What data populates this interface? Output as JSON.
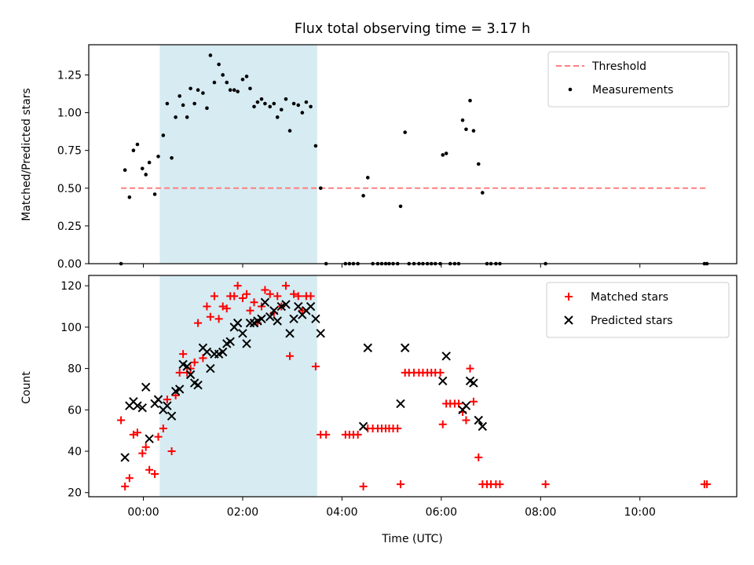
{
  "title": "Flux total observing time = 3.17 h",
  "chart_data": [
    {
      "type": "scatter",
      "ylabel": "Matched/Predicted stars",
      "xlabel": "",
      "xlim": [
        -1.1,
        11.95
      ],
      "ylim": [
        0,
        1.45
      ],
      "yticks": [
        0.0,
        0.25,
        0.5,
        0.75,
        1.0,
        1.25
      ],
      "ytick_labels": [
        "0.00",
        "0.25",
        "0.50",
        "0.75",
        "1.00",
        "1.25"
      ],
      "highlight_span": [
        0.33,
        3.5
      ],
      "threshold": {
        "name": "Threshold",
        "y": 0.5,
        "x": [
          -0.45,
          11.35
        ],
        "color": "#ff7f7f"
      },
      "legend_position": "top-right",
      "series": [
        {
          "name": "Measurements",
          "color": "#000000",
          "points": [
            [
              -0.45,
              0.0
            ],
            [
              -0.37,
              0.62
            ],
            [
              -0.28,
              0.44
            ],
            [
              -0.2,
              0.75
            ],
            [
              -0.12,
              0.79
            ],
            [
              -0.02,
              0.63
            ],
            [
              0.05,
              0.59
            ],
            [
              0.12,
              0.67
            ],
            [
              0.23,
              0.46
            ],
            [
              0.3,
              0.71
            ],
            [
              0.4,
              0.85
            ],
            [
              0.48,
              1.06
            ],
            [
              0.57,
              0.7
            ],
            [
              0.65,
              0.97
            ],
            [
              0.73,
              1.11
            ],
            [
              0.8,
              1.05
            ],
            [
              0.88,
              0.97
            ],
            [
              0.95,
              1.16
            ],
            [
              1.03,
              1.06
            ],
            [
              1.1,
              1.15
            ],
            [
              1.2,
              1.13
            ],
            [
              1.28,
              1.03
            ],
            [
              1.35,
              1.38
            ],
            [
              1.43,
              1.2
            ],
            [
              1.52,
              1.32
            ],
            [
              1.6,
              1.25
            ],
            [
              1.68,
              1.2
            ],
            [
              1.75,
              1.15
            ],
            [
              1.83,
              1.15
            ],
            [
              1.9,
              1.14
            ],
            [
              2.0,
              1.22
            ],
            [
              2.08,
              1.24
            ],
            [
              2.15,
              1.16
            ],
            [
              2.23,
              1.04
            ],
            [
              2.3,
              1.07
            ],
            [
              2.38,
              1.09
            ],
            [
              2.45,
              1.06
            ],
            [
              2.55,
              1.04
            ],
            [
              2.63,
              1.06
            ],
            [
              2.7,
              0.97
            ],
            [
              2.78,
              1.02
            ],
            [
              2.87,
              1.09
            ],
            [
              2.95,
              0.88
            ],
            [
              3.03,
              1.06
            ],
            [
              3.12,
              1.05
            ],
            [
              3.2,
              1.0
            ],
            [
              3.28,
              1.07
            ],
            [
              3.37,
              1.04
            ],
            [
              3.47,
              0.78
            ],
            [
              3.57,
              0.5
            ],
            [
              3.68,
              0.0
            ],
            [
              4.07,
              0.0
            ],
            [
              4.15,
              0.0
            ],
            [
              4.23,
              0.0
            ],
            [
              4.32,
              0.0
            ],
            [
              4.43,
              0.45
            ],
            [
              4.52,
              0.57
            ],
            [
              4.62,
              0.0
            ],
            [
              4.72,
              0.0
            ],
            [
              4.8,
              0.0
            ],
            [
              4.88,
              0.0
            ],
            [
              4.95,
              0.0
            ],
            [
              5.03,
              0.0
            ],
            [
              5.12,
              0.0
            ],
            [
              5.18,
              0.38
            ],
            [
              5.27,
              0.87
            ],
            [
              5.35,
              0.0
            ],
            [
              5.45,
              0.0
            ],
            [
              5.55,
              0.0
            ],
            [
              5.63,
              0.0
            ],
            [
              5.72,
              0.0
            ],
            [
              5.8,
              0.0
            ],
            [
              5.88,
              0.0
            ],
            [
              5.98,
              0.0
            ],
            [
              6.03,
              0.72
            ],
            [
              6.1,
              0.73
            ],
            [
              6.18,
              0.0
            ],
            [
              6.27,
              0.0
            ],
            [
              6.35,
              0.0
            ],
            [
              6.43,
              0.95
            ],
            [
              6.5,
              0.89
            ],
            [
              6.58,
              1.08
            ],
            [
              6.65,
              0.88
            ],
            [
              6.75,
              0.66
            ],
            [
              6.83,
              0.47
            ],
            [
              6.92,
              0.0
            ],
            [
              7.0,
              0.0
            ],
            [
              7.1,
              0.0
            ],
            [
              7.18,
              0.0
            ],
            [
              8.1,
              0.0
            ],
            [
              11.3,
              0.0
            ],
            [
              11.35,
              0.0
            ]
          ]
        }
      ]
    },
    {
      "type": "scatter",
      "ylabel": "Count",
      "xlabel": "Time (UTC)",
      "xlim": [
        -1.1,
        11.95
      ],
      "ylim": [
        18,
        125
      ],
      "yticks": [
        20,
        40,
        60,
        80,
        100,
        120
      ],
      "ytick_labels": [
        "20",
        "40",
        "60",
        "80",
        "100",
        "120"
      ],
      "xticks": [
        0,
        2,
        4,
        6,
        8,
        10
      ],
      "xtick_labels": [
        "00:00",
        "02:00",
        "04:00",
        "06:00",
        "08:00",
        "10:00"
      ],
      "highlight_span": [
        0.33,
        3.5
      ],
      "legend_position": "top-right",
      "series": [
        {
          "name": "Matched stars",
          "marker": "plus",
          "color": "#ff0000",
          "points": [
            [
              -0.45,
              55
            ],
            [
              -0.37,
              23
            ],
            [
              -0.28,
              27
            ],
            [
              -0.2,
              48
            ],
            [
              -0.12,
              49
            ],
            [
              -0.02,
              39
            ],
            [
              0.05,
              42
            ],
            [
              0.12,
              31
            ],
            [
              0.23,
              29
            ],
            [
              0.3,
              47
            ],
            [
              0.4,
              51
            ],
            [
              0.48,
              65
            ],
            [
              0.57,
              40
            ],
            [
              0.65,
              67
            ],
            [
              0.73,
              78
            ],
            [
              0.8,
              87
            ],
            [
              0.88,
              78
            ],
            [
              0.95,
              80
            ],
            [
              1.03,
              83
            ],
            [
              1.1,
              102
            ],
            [
              1.2,
              85
            ],
            [
              1.28,
              110
            ],
            [
              1.35,
              105
            ],
            [
              1.43,
              115
            ],
            [
              1.52,
              104
            ],
            [
              1.6,
              110
            ],
            [
              1.68,
              109
            ],
            [
              1.75,
              115
            ],
            [
              1.83,
              115
            ],
            [
              1.9,
              120
            ],
            [
              2.0,
              114
            ],
            [
              2.08,
              116
            ],
            [
              2.15,
              108
            ],
            [
              2.23,
              112
            ],
            [
              2.3,
              102
            ],
            [
              2.38,
              110
            ],
            [
              2.45,
              118
            ],
            [
              2.55,
              116
            ],
            [
              2.63,
              107
            ],
            [
              2.7,
              115
            ],
            [
              2.78,
              110
            ],
            [
              2.87,
              120
            ],
            [
              2.95,
              86
            ],
            [
              3.03,
              116
            ],
            [
              3.12,
              115
            ],
            [
              3.2,
              108
            ],
            [
              3.28,
              115
            ],
            [
              3.37,
              115
            ],
            [
              3.47,
              81
            ],
            [
              3.57,
              48
            ],
            [
              3.68,
              48
            ],
            [
              4.07,
              48
            ],
            [
              4.15,
              48
            ],
            [
              4.23,
              48
            ],
            [
              4.32,
              48
            ],
            [
              4.43,
              23
            ],
            [
              4.52,
              51
            ],
            [
              4.62,
              51
            ],
            [
              4.72,
              51
            ],
            [
              4.8,
              51
            ],
            [
              4.88,
              51
            ],
            [
              4.95,
              51
            ],
            [
              5.03,
              51
            ],
            [
              5.12,
              51
            ],
            [
              5.18,
              24
            ],
            [
              5.27,
              78
            ],
            [
              5.35,
              78
            ],
            [
              5.45,
              78
            ],
            [
              5.55,
              78
            ],
            [
              5.63,
              78
            ],
            [
              5.72,
              78
            ],
            [
              5.8,
              78
            ],
            [
              5.88,
              78
            ],
            [
              5.98,
              78
            ],
            [
              6.03,
              53
            ],
            [
              6.1,
              63
            ],
            [
              6.18,
              63
            ],
            [
              6.27,
              63
            ],
            [
              6.35,
              63
            ],
            [
              6.43,
              59
            ],
            [
              6.5,
              55
            ],
            [
              6.58,
              80
            ],
            [
              6.65,
              64
            ],
            [
              6.75,
              37
            ],
            [
              6.83,
              24
            ],
            [
              6.92,
              24
            ],
            [
              7.0,
              24
            ],
            [
              7.1,
              24
            ],
            [
              7.18,
              24
            ],
            [
              8.1,
              24
            ],
            [
              11.3,
              24
            ],
            [
              11.35,
              24
            ]
          ]
        },
        {
          "name": "Predicted stars",
          "marker": "x",
          "color": "#000000",
          "points": [
            [
              -0.37,
              37
            ],
            [
              -0.28,
              62
            ],
            [
              -0.2,
              64
            ],
            [
              -0.12,
              62
            ],
            [
              -0.02,
              61
            ],
            [
              0.05,
              71
            ],
            [
              0.12,
              46
            ],
            [
              0.23,
              63
            ],
            [
              0.3,
              65
            ],
            [
              0.4,
              60
            ],
            [
              0.48,
              62
            ],
            [
              0.57,
              57
            ],
            [
              0.65,
              69
            ],
            [
              0.73,
              70
            ],
            [
              0.8,
              82
            ],
            [
              0.88,
              81
            ],
            [
              0.95,
              77
            ],
            [
              1.03,
              73
            ],
            [
              1.1,
              72
            ],
            [
              1.2,
              90
            ],
            [
              1.28,
              88
            ],
            [
              1.35,
              80
            ],
            [
              1.43,
              87
            ],
            [
              1.52,
              87
            ],
            [
              1.6,
              88
            ],
            [
              1.68,
              92
            ],
            [
              1.75,
              93
            ],
            [
              1.83,
              100
            ],
            [
              1.9,
              102
            ],
            [
              2.0,
              97
            ],
            [
              2.08,
              92
            ],
            [
              2.15,
              102
            ],
            [
              2.23,
              102
            ],
            [
              2.3,
              103
            ],
            [
              2.38,
              104
            ],
            [
              2.45,
              112
            ],
            [
              2.55,
              105
            ],
            [
              2.63,
              108
            ],
            [
              2.7,
              103
            ],
            [
              2.78,
              110
            ],
            [
              2.87,
              111
            ],
            [
              2.95,
              97
            ],
            [
              3.03,
              104
            ],
            [
              3.12,
              110
            ],
            [
              3.2,
              106
            ],
            [
              3.28,
              108
            ],
            [
              3.37,
              110
            ],
            [
              3.47,
              104
            ],
            [
              3.57,
              97
            ],
            [
              4.43,
              52
            ],
            [
              4.52,
              90
            ],
            [
              5.18,
              63
            ],
            [
              5.27,
              90
            ],
            [
              6.03,
              74
            ],
            [
              6.1,
              86
            ],
            [
              6.43,
              60
            ],
            [
              6.5,
              62
            ],
            [
              6.58,
              74
            ],
            [
              6.65,
              73
            ],
            [
              6.75,
              55
            ],
            [
              6.83,
              52
            ]
          ]
        }
      ]
    }
  ]
}
